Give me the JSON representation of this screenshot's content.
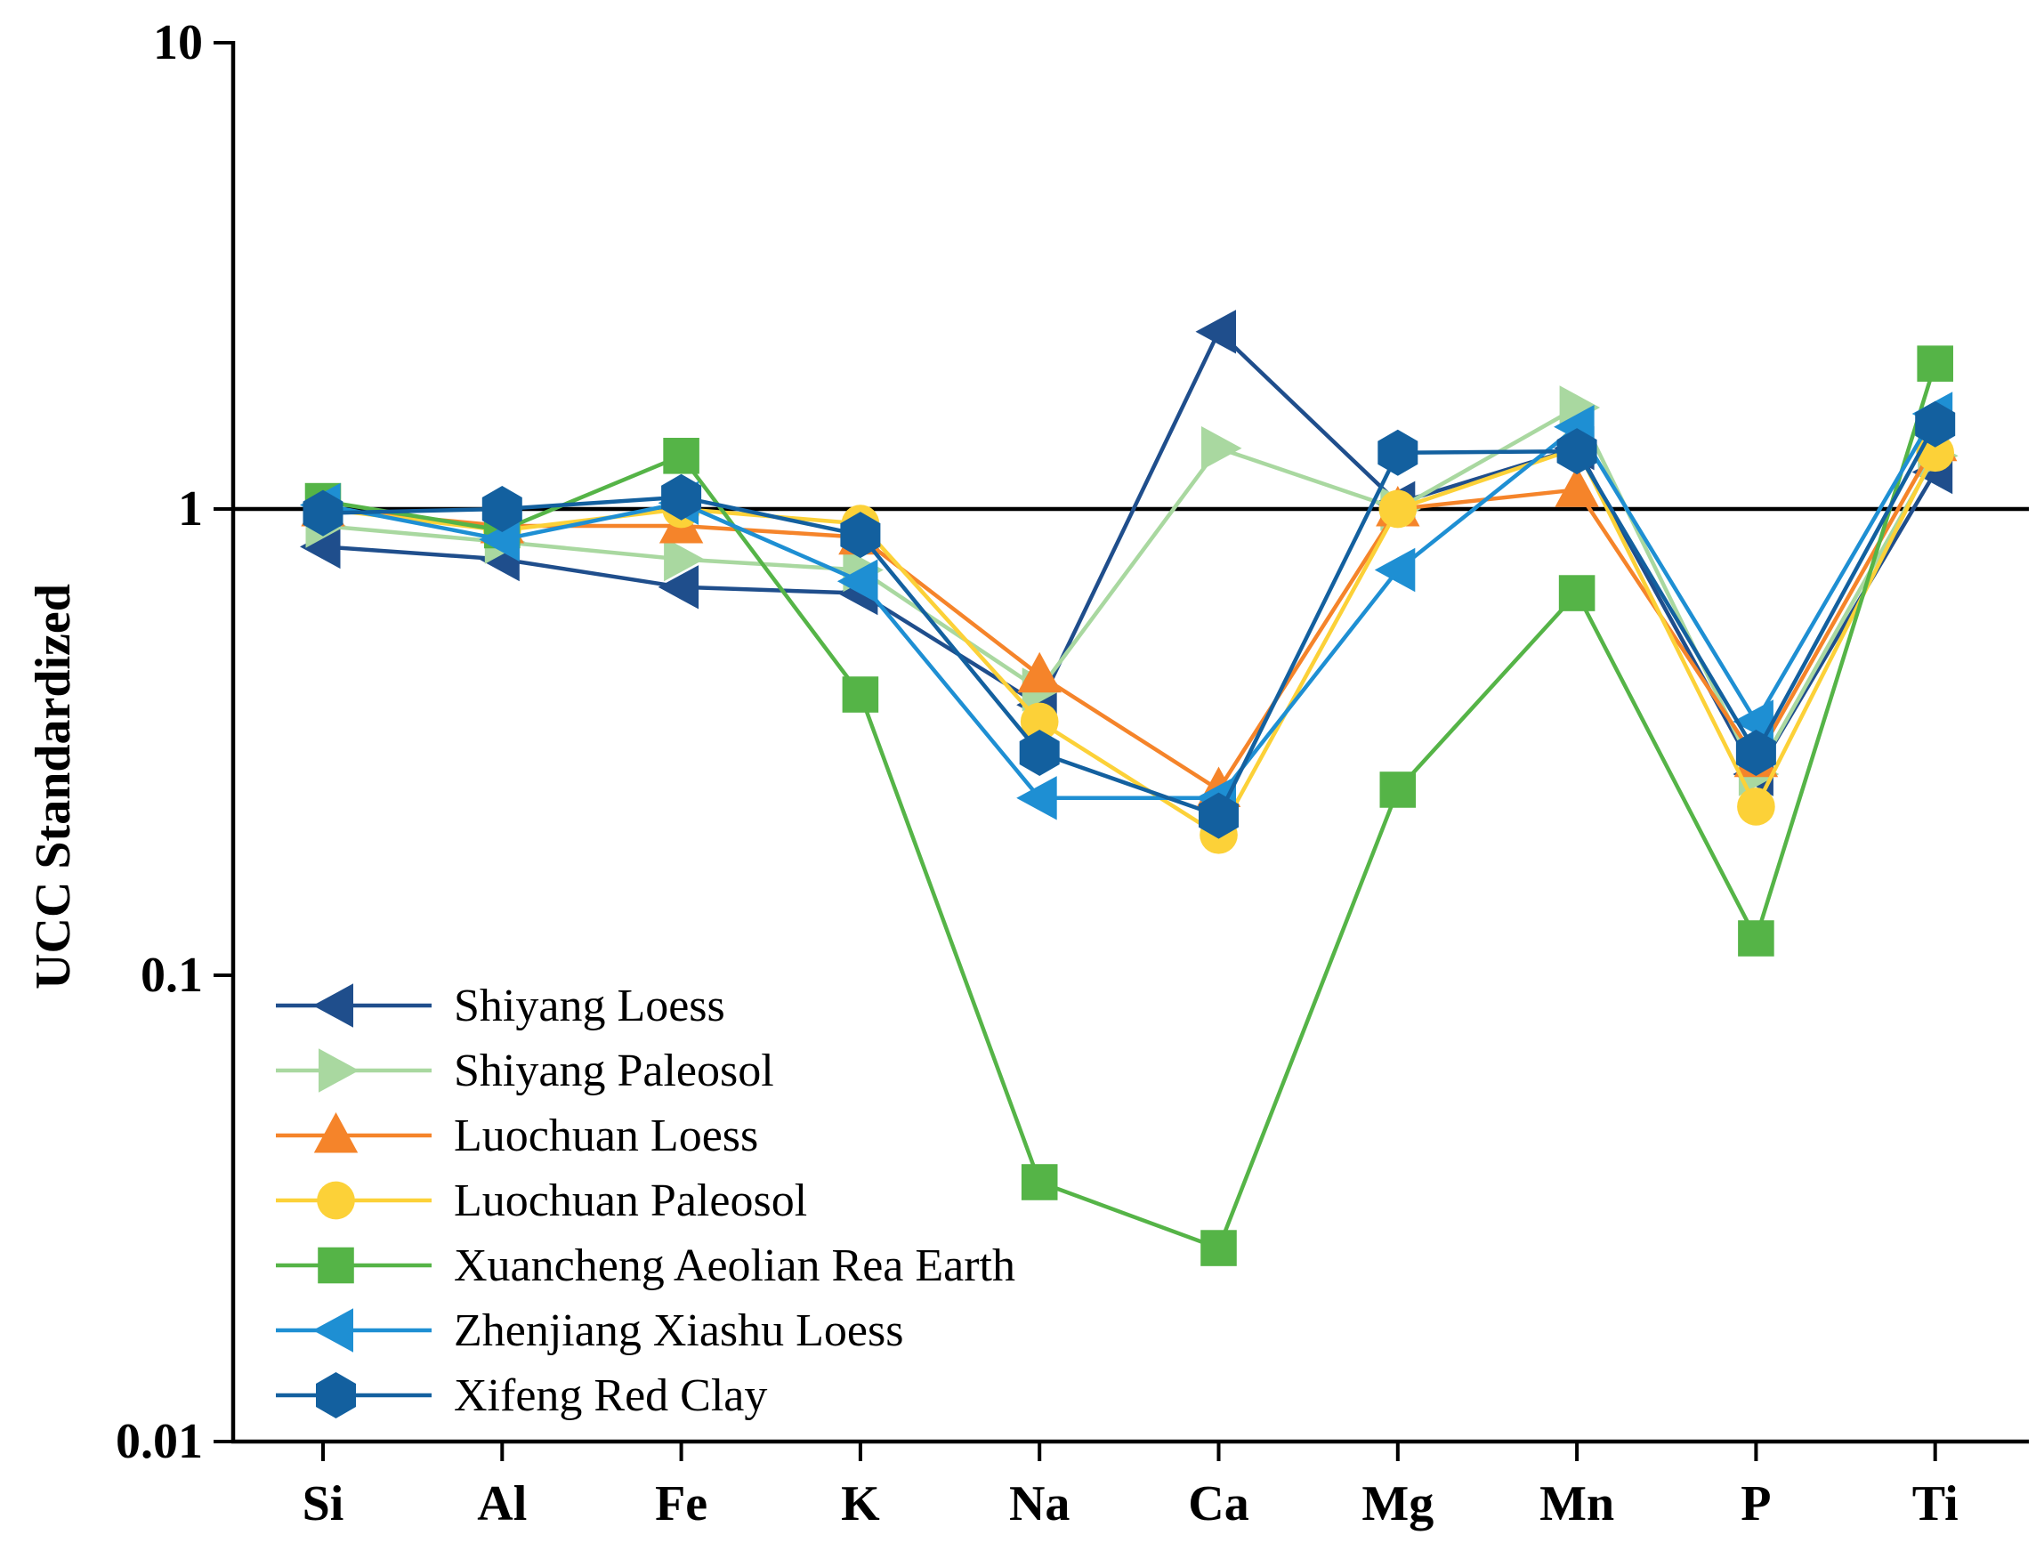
{
  "chart_data": {
    "type": "line",
    "title": "",
    "xlabel": "",
    "ylabel": "UCC Standardized",
    "yscale": "log",
    "ylim": [
      0.01,
      10
    ],
    "yticks": [
      {
        "value": 10,
        "label": "10"
      },
      {
        "value": 1,
        "label": "1"
      },
      {
        "value": 0.1,
        "label": "0.1"
      },
      {
        "value": 0.01,
        "label": "0.01"
      }
    ],
    "reference_line": 1,
    "categories": [
      "Si",
      "Al",
      "Fe",
      "K",
      "Na",
      "Ca",
      "Mg",
      "Mn",
      "P",
      "Ti"
    ],
    "legend_position": "bottom-left",
    "series": [
      {
        "name": "Shiyang Loess",
        "color": "#1f4e8c",
        "marker": "triangle-left",
        "values": [
          0.83,
          0.78,
          0.68,
          0.66,
          0.38,
          2.4,
          1.03,
          1.35,
          0.27,
          1.2
        ]
      },
      {
        "name": "Shiyang Paleosol",
        "color": "#a9d8a0",
        "marker": "triangle-right",
        "values": [
          0.92,
          0.85,
          0.78,
          0.74,
          0.41,
          1.35,
          1.0,
          1.65,
          0.27,
          1.3
        ]
      },
      {
        "name": "Luochuan Loess",
        "color": "#f5842a",
        "marker": "triangle-up",
        "values": [
          1.0,
          0.92,
          0.92,
          0.87,
          0.44,
          0.25,
          1.0,
          1.1,
          0.29,
          1.38
        ]
      },
      {
        "name": "Luochuan Paleosol",
        "color": "#fcd138",
        "marker": "circle",
        "values": [
          1.0,
          0.9,
          1.0,
          0.93,
          0.35,
          0.2,
          1.0,
          1.35,
          0.23,
          1.32
        ]
      },
      {
        "name": "Xuancheng Aeolian Rea Earth",
        "color": "#55b447",
        "marker": "square",
        "values": [
          1.04,
          0.9,
          1.3,
          0.4,
          0.036,
          0.026,
          0.25,
          0.66,
          0.12,
          2.05
        ]
      },
      {
        "name": "Zhenjiang Xiashu Loess",
        "color": "#1e8fd3",
        "marker": "triangle-left",
        "values": [
          1.02,
          0.86,
          1.03,
          0.7,
          0.24,
          0.24,
          0.74,
          1.5,
          0.35,
          1.6
        ]
      },
      {
        "name": "Xifeng Red Clay",
        "color": "#13609f",
        "marker": "hexagon",
        "values": [
          0.98,
          1.0,
          1.06,
          0.88,
          0.3,
          0.22,
          1.32,
          1.33,
          0.3,
          1.52
        ]
      }
    ]
  },
  "colors": {
    "axis": "#000000",
    "background": "#ffffff"
  }
}
